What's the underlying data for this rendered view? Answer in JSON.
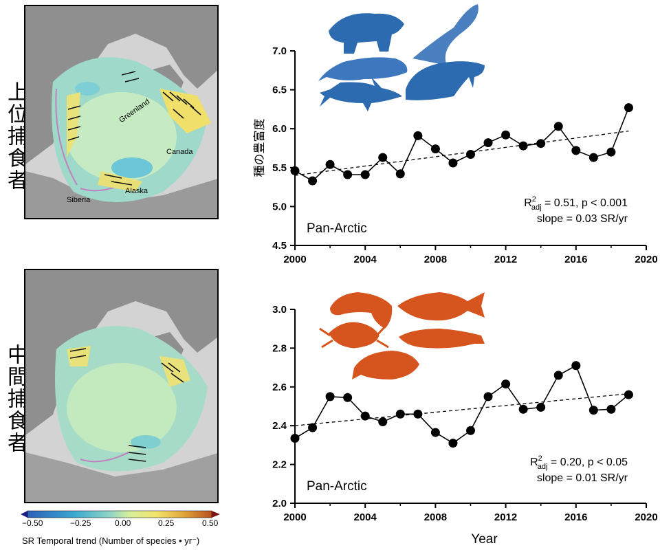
{
  "panels": {
    "top_label": "上位捕食者",
    "bottom_label": "中間捕食者"
  },
  "map": {
    "labels": {
      "greenland": "Greenland",
      "canada": "Canada",
      "siberia": "Siberia",
      "alaska": "Alaska"
    }
  },
  "colorbar": {
    "ticks": [
      "−0.50",
      "−0.25",
      "0.00",
      "0.25",
      "0.50"
    ],
    "title": "SR Temporal trend (Number of species • yr⁻)",
    "colors": [
      "#1d1d8c",
      "#2c5fb8",
      "#39a8d0",
      "#8fd6c4",
      "#d6ef9c",
      "#f2e46a",
      "#e0a43a",
      "#b8501f",
      "#7a1515"
    ]
  },
  "chart_data": [
    {
      "type": "line",
      "ylabel": "種の豊富度",
      "xlabel": "",
      "xlim": [
        2000,
        2020
      ],
      "ylim": [
        4.5,
        7.0
      ],
      "xticks": [
        "2000",
        "2004",
        "2008",
        "2012",
        "2016",
        "2020"
      ],
      "yticks": [
        "4.5",
        "5.0",
        "5.5",
        "6.0",
        "6.5",
        "7.0"
      ],
      "x": [
        2000,
        2001,
        2002,
        2003,
        2004,
        2005,
        2006,
        2007,
        2008,
        2009,
        2010,
        2011,
        2012,
        2013,
        2014,
        2015,
        2016,
        2017,
        2018,
        2019
      ],
      "values": [
        5.46,
        5.33,
        5.54,
        5.41,
        5.41,
        5.63,
        5.42,
        5.91,
        5.74,
        5.56,
        5.67,
        5.82,
        5.92,
        5.78,
        5.81,
        6.03,
        5.72,
        5.63,
        5.7,
        6.27
      ],
      "trend": [
        [
          2000,
          5.4
        ],
        [
          2019,
          5.97
        ]
      ],
      "region": "Pan-Arctic",
      "stat_r2_value": " = 0.51, p < 0.001",
      "slope_text": "slope = 0.03 SR/yr",
      "silhouette_color": "#2d6bb0",
      "silhouettes": [
        "polar-bear-icon",
        "albatross-icon",
        "beluga-icon",
        "walrus-icon",
        "shark-icon"
      ]
    },
    {
      "type": "line",
      "ylabel": "",
      "xlabel": "Year",
      "xlim": [
        2000,
        2020
      ],
      "ylim": [
        2.0,
        3.0
      ],
      "xticks": [
        "2000",
        "2004",
        "2008",
        "2012",
        "2016",
        "2020"
      ],
      "yticks": [
        "2.0",
        "2.2",
        "2.4",
        "2.6",
        "2.8",
        "3.0"
      ],
      "x": [
        2000,
        2001,
        2002,
        2003,
        2004,
        2005,
        2006,
        2007,
        2008,
        2009,
        2010,
        2011,
        2012,
        2013,
        2014,
        2015,
        2016,
        2017,
        2018,
        2019
      ],
      "values": [
        2.335,
        2.39,
        2.55,
        2.545,
        2.45,
        2.42,
        2.46,
        2.46,
        2.365,
        2.31,
        2.375,
        2.55,
        2.615,
        2.485,
        2.495,
        2.66,
        2.71,
        2.48,
        2.485,
        2.56
      ],
      "trend": [
        [
          2000,
          2.4
        ],
        [
          2019,
          2.565
        ]
      ],
      "region": "Pan-Arctic",
      "stat_r2_value": " = 0.20, p < 0.05",
      "slope_text": "slope = 0.01 SR/yr",
      "silhouette_color": "#d6541d",
      "silhouettes": [
        "shrimp-icon",
        "cod-icon",
        "crab-icon",
        "eelpout-icon",
        "flatfish-icon"
      ]
    }
  ]
}
